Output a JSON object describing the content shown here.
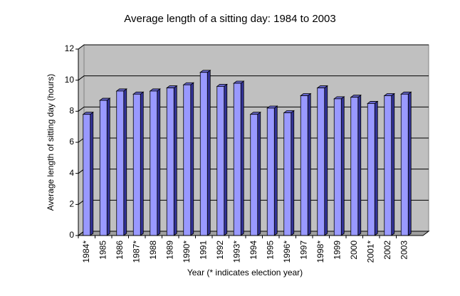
{
  "chart_data": {
    "type": "bar",
    "title": "Average length of a sitting day: 1984 to 2003",
    "x_label": "Year (* indicates election year)",
    "y_label": "Average length of sitting day (hours)",
    "categories": [
      "1984*",
      "1985",
      "1986",
      "1987*",
      "1988",
      "1989",
      "1990*",
      "1991",
      "1992",
      "1993*",
      "1994",
      "1995",
      "1996*",
      "1997",
      "1998*",
      "1999",
      "2000",
      "2001*",
      "2002",
      "2003"
    ],
    "values": [
      7.8,
      8.7,
      9.3,
      9.1,
      9.3,
      9.5,
      9.7,
      10.5,
      9.6,
      9.8,
      7.8,
      8.2,
      7.9,
      9.0,
      9.5,
      8.8,
      8.9,
      8.5,
      9.0,
      9.1
    ],
    "color": "#9999ff",
    "ylim": [
      0,
      12
    ],
    "yticks": [
      0,
      2,
      4,
      6,
      8,
      10,
      12
    ],
    "grid": true
  }
}
